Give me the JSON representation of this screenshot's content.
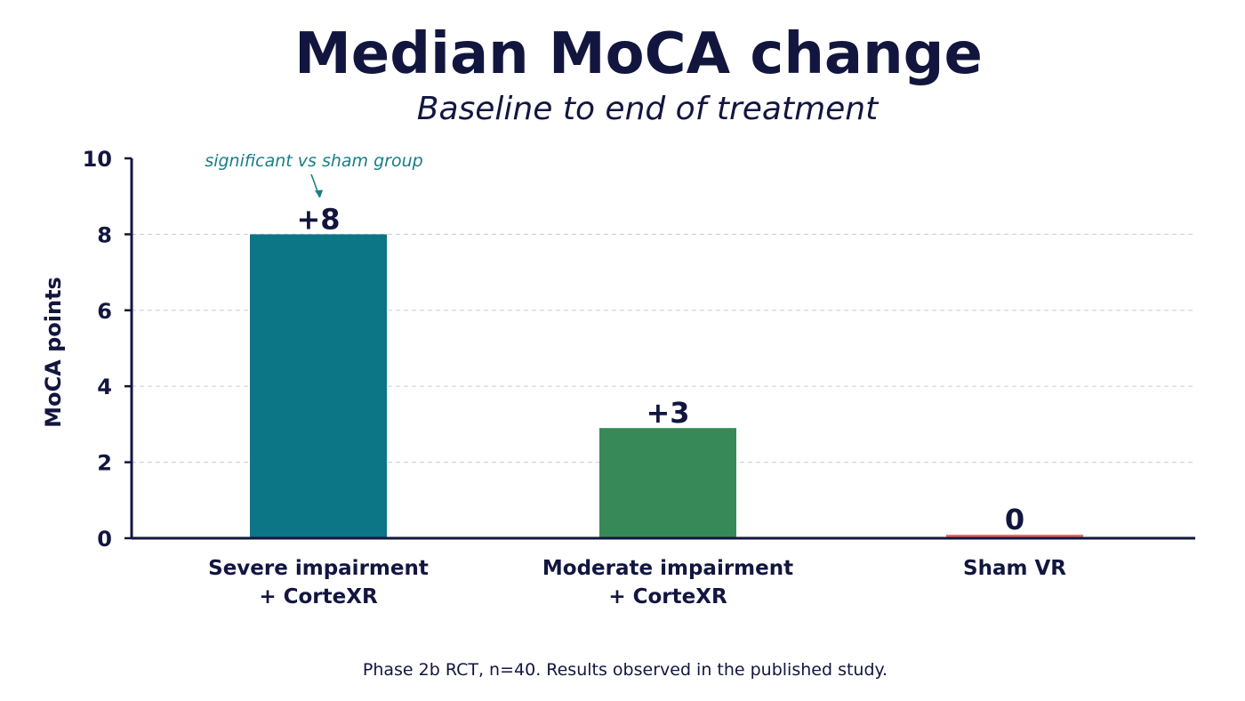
{
  "chart_data": {
    "type": "bar",
    "title": "Median MoCA change",
    "subtitle": "Baseline to end of treatment",
    "xlabel": "",
    "ylabel": "MoCA points",
    "ylim": [
      0,
      10
    ],
    "yticks": [
      0,
      2,
      4,
      6,
      8,
      10
    ],
    "grid": true,
    "categories": [
      [
        "Severe impairment",
        "+ CorteXR"
      ],
      [
        "Moderate impairment",
        "+ CorteXR"
      ],
      [
        "Sham VR"
      ]
    ],
    "values": [
      8,
      2.9,
      0
    ],
    "data_labels": [
      "+8",
      "+3",
      "0"
    ],
    "colors": [
      "#0c7586",
      "#378a57",
      "#ef6b64"
    ],
    "annotation": {
      "text": "significant vs sham group",
      "target_index": 0,
      "color": "#1a7d87"
    },
    "footnote": "Phase 2b RCT, n=40. Results observed in the published study."
  }
}
